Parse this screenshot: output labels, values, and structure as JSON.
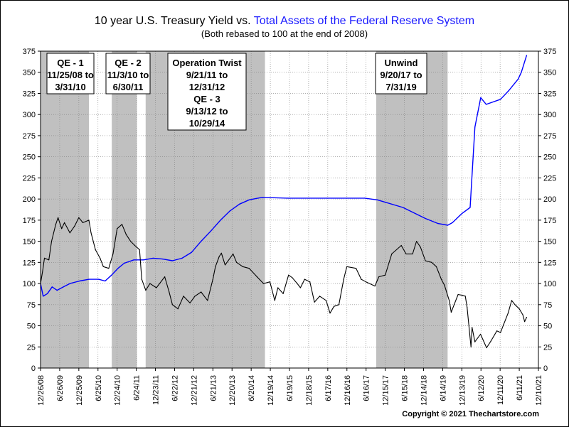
{
  "chart_data": {
    "type": "line",
    "title_part1": "10 year U.S. Treasury Yield vs. ",
    "title_part2": "Total Assets of the Federal Reserve System",
    "subtitle": "(Both rebased to 100 at the end of 2008)",
    "copyright": "Copyright © 2021 Thechartstore.com",
    "ylim": [
      0,
      375
    ],
    "yticks": [
      0,
      25,
      50,
      75,
      100,
      125,
      150,
      175,
      200,
      225,
      250,
      275,
      300,
      325,
      350,
      375
    ],
    "x_range": [
      "2008-12-26",
      "2021-12-10"
    ],
    "xticks": [
      "12/26/08",
      "6/26/09",
      "12/25/09",
      "6/25/10",
      "12/24/10",
      "6/24/11",
      "12/23/11",
      "6/22/12",
      "12/21/12",
      "6/21/13",
      "12/20/13",
      "6/20/14",
      "12/19/14",
      "6/19/15",
      "12/18/15",
      "6/17/16",
      "12/16/16",
      "6/16/17",
      "12/15/17",
      "6/15/18",
      "12/14/18",
      "6/14/19",
      "12/13/19",
      "6/12/20",
      "12/11/20",
      "6/11/21",
      "12/10/21"
    ],
    "shaded_periods": [
      {
        "label_lines": [
          "QE - 1",
          "11/25/08 to",
          "3/31/10"
        ],
        "start": "2008-12-26",
        "end": "2010-03-31"
      },
      {
        "label_lines": [
          "QE - 2",
          "11/3/10 to",
          "6/30/11"
        ],
        "start": "2010-11-03",
        "end": "2011-06-30"
      },
      {
        "label_lines": [
          "Operation Twist",
          "9/21/11 to",
          "12/31/12",
          "QE - 3",
          "9/13/12 to",
          "10/29/14"
        ],
        "start": "2011-09-21",
        "end": "2014-10-29"
      },
      {
        "label_lines": [
          "Unwind",
          "9/20/17 to",
          "7/31/19"
        ],
        "start": "2017-09-20",
        "end": "2019-07-31"
      }
    ],
    "series": [
      {
        "color": "#0000ff",
        "points": [
          [
            "2008-12-26",
            100
          ],
          [
            "2009-01-20",
            85
          ],
          [
            "2009-03-01",
            88
          ],
          [
            "2009-04-15",
            96
          ],
          [
            "2009-06-01",
            92
          ],
          [
            "2009-08-01",
            96
          ],
          [
            "2009-10-01",
            100
          ],
          [
            "2010-01-01",
            103
          ],
          [
            "2010-04-01",
            105
          ],
          [
            "2010-07-01",
            105
          ],
          [
            "2010-09-01",
            103
          ],
          [
            "2010-11-01",
            110
          ],
          [
            "2011-01-01",
            118
          ],
          [
            "2011-03-01",
            124
          ],
          [
            "2011-06-01",
            128
          ],
          [
            "2011-09-01",
            128
          ],
          [
            "2011-12-01",
            130
          ],
          [
            "2012-03-01",
            129
          ],
          [
            "2012-06-01",
            127
          ],
          [
            "2012-09-01",
            130
          ],
          [
            "2012-12-01",
            137
          ],
          [
            "2013-03-01",
            150
          ],
          [
            "2013-06-01",
            162
          ],
          [
            "2013-09-01",
            175
          ],
          [
            "2013-12-01",
            186
          ],
          [
            "2014-03-01",
            194
          ],
          [
            "2014-06-01",
            199
          ],
          [
            "2014-10-01",
            202
          ],
          [
            "2015-06-01",
            201
          ],
          [
            "2016-06-01",
            201
          ],
          [
            "2017-06-01",
            201
          ],
          [
            "2017-10-01",
            199
          ],
          [
            "2018-06-01",
            190
          ],
          [
            "2019-01-01",
            177
          ],
          [
            "2019-05-01",
            171
          ],
          [
            "2019-08-01",
            169
          ],
          [
            "2019-09-15",
            172
          ],
          [
            "2019-12-15",
            183
          ],
          [
            "2020-03-01",
            190
          ],
          [
            "2020-03-15",
            220
          ],
          [
            "2020-04-15",
            285
          ],
          [
            "2020-06-10",
            320
          ],
          [
            "2020-08-01",
            312
          ],
          [
            "2020-12-15",
            318
          ],
          [
            "2021-03-01",
            328
          ],
          [
            "2021-06-01",
            342
          ],
          [
            "2021-07-01",
            350
          ],
          [
            "2021-08-20",
            370
          ]
        ]
      },
      {
        "color": "#000000",
        "points": [
          [
            "2008-12-26",
            100
          ],
          [
            "2009-01-15",
            115
          ],
          [
            "2009-02-01",
            130
          ],
          [
            "2009-03-15",
            128
          ],
          [
            "2009-04-10",
            150
          ],
          [
            "2009-05-20",
            170
          ],
          [
            "2009-06-10",
            178
          ],
          [
            "2009-07-15",
            165
          ],
          [
            "2009-08-10",
            172
          ],
          [
            "2009-10-01",
            160
          ],
          [
            "2009-11-15",
            168
          ],
          [
            "2009-12-25",
            178
          ],
          [
            "2010-02-01",
            172
          ],
          [
            "2010-03-31",
            175
          ],
          [
            "2010-04-20",
            160
          ],
          [
            "2010-06-01",
            140
          ],
          [
            "2010-07-15",
            130
          ],
          [
            "2010-08-15",
            120
          ],
          [
            "2010-10-05",
            118
          ],
          [
            "2010-11-15",
            135
          ],
          [
            "2010-12-24",
            165
          ],
          [
            "2011-02-08",
            170
          ],
          [
            "2011-03-20",
            158
          ],
          [
            "2011-05-01",
            150
          ],
          [
            "2011-06-10",
            145
          ],
          [
            "2011-07-25",
            140
          ],
          [
            "2011-08-15",
            105
          ],
          [
            "2011-09-22",
            92
          ],
          [
            "2011-11-01",
            100
          ],
          [
            "2012-01-01",
            95
          ],
          [
            "2012-03-20",
            108
          ],
          [
            "2012-05-01",
            90
          ],
          [
            "2012-06-01",
            75
          ],
          [
            "2012-07-24",
            70
          ],
          [
            "2012-09-15",
            85
          ],
          [
            "2012-11-15",
            77
          ],
          [
            "2013-01-01",
            85
          ],
          [
            "2013-03-01",
            90
          ],
          [
            "2013-05-01",
            80
          ],
          [
            "2013-06-21",
            105
          ],
          [
            "2013-07-15",
            120
          ],
          [
            "2013-08-20",
            132
          ],
          [
            "2013-09-10",
            136
          ],
          [
            "2013-10-15",
            122
          ],
          [
            "2013-12-30",
            135
          ],
          [
            "2014-02-01",
            125
          ],
          [
            "2014-04-01",
            120
          ],
          [
            "2014-06-01",
            118
          ],
          [
            "2014-08-15",
            108
          ],
          [
            "2014-10-15",
            100
          ],
          [
            "2014-12-15",
            102
          ],
          [
            "2015-01-30",
            80
          ],
          [
            "2015-03-01",
            95
          ],
          [
            "2015-04-20",
            88
          ],
          [
            "2015-06-10",
            110
          ],
          [
            "2015-07-15",
            107
          ],
          [
            "2015-09-01",
            100
          ],
          [
            "2015-10-01",
            95
          ],
          [
            "2015-11-10",
            105
          ],
          [
            "2015-12-30",
            102
          ],
          [
            "2016-02-11",
            78
          ],
          [
            "2016-04-01",
            85
          ],
          [
            "2016-06-01",
            80
          ],
          [
            "2016-07-08",
            65
          ],
          [
            "2016-08-15",
            73
          ],
          [
            "2016-10-01",
            75
          ],
          [
            "2016-11-15",
            105
          ],
          [
            "2016-12-15",
            120
          ],
          [
            "2017-03-13",
            118
          ],
          [
            "2017-05-01",
            105
          ],
          [
            "2017-06-15",
            102
          ],
          [
            "2017-09-08",
            97
          ],
          [
            "2017-10-15",
            108
          ],
          [
            "2017-12-15",
            110
          ],
          [
            "2018-02-15",
            135
          ],
          [
            "2018-05-17",
            145
          ],
          [
            "2018-07-01",
            135
          ],
          [
            "2018-09-01",
            135
          ],
          [
            "2018-10-08",
            150
          ],
          [
            "2018-11-15",
            143
          ],
          [
            "2019-01-01",
            127
          ],
          [
            "2019-03-01",
            125
          ],
          [
            "2019-04-15",
            120
          ],
          [
            "2019-06-01",
            105
          ],
          [
            "2019-07-01",
            98
          ],
          [
            "2019-08-15",
            80
          ],
          [
            "2019-09-03",
            66
          ],
          [
            "2019-10-01",
            75
          ],
          [
            "2019-11-08",
            87
          ],
          [
            "2019-12-20",
            86
          ],
          [
            "2020-01-15",
            85
          ],
          [
            "2020-02-01",
            72
          ],
          [
            "2020-03-09",
            25
          ],
          [
            "2020-03-19",
            48
          ],
          [
            "2020-04-15",
            31
          ],
          [
            "2020-06-08",
            40
          ],
          [
            "2020-08-04",
            24
          ],
          [
            "2020-09-15",
            32
          ],
          [
            "2020-11-10",
            44
          ],
          [
            "2020-12-15",
            42
          ],
          [
            "2021-01-15",
            52
          ],
          [
            "2021-02-25",
            65
          ],
          [
            "2021-03-31",
            80
          ],
          [
            "2021-05-01",
            75
          ],
          [
            "2021-06-11",
            70
          ],
          [
            "2021-07-15",
            63
          ],
          [
            "2021-08-01",
            55
          ],
          [
            "2021-08-20",
            60
          ]
        ]
      }
    ]
  }
}
